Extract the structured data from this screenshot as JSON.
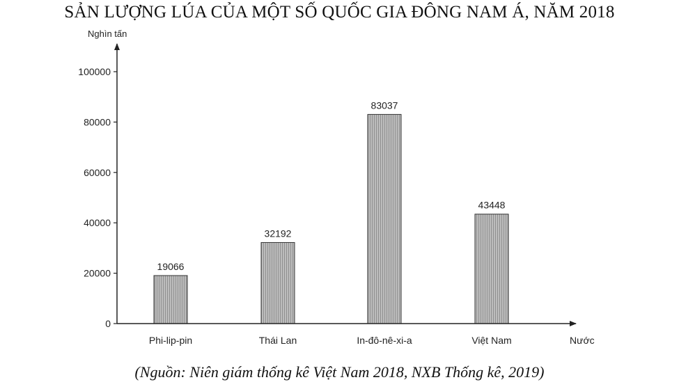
{
  "chart_data": {
    "type": "bar",
    "title": "SẢN LƯỢNG LÚA CỦA MỘT SỐ QUỐC GIA ĐÔNG NAM Á, NĂM 2018",
    "ylabel": "Nghìn tấn",
    "xlabel": "Nước",
    "categories": [
      "Phi-lip-pin",
      "Thái Lan",
      "In-đô-nê-xi-a",
      "Việt Nam"
    ],
    "values": [
      19066,
      32192,
      83037,
      43448
    ],
    "data_labels": [
      "19066",
      "32192",
      "83037",
      "43448"
    ],
    "ylim": [
      0,
      100000
    ],
    "yticks": [
      "0",
      "20000",
      "40000",
      "60000",
      "80000",
      "100000"
    ],
    "bar_color": "#b4b4b4",
    "grid": false
  },
  "source": "(Nguồn: Niên giám thống kê Việt Nam 2018, NXB Thống kê, 2019)"
}
